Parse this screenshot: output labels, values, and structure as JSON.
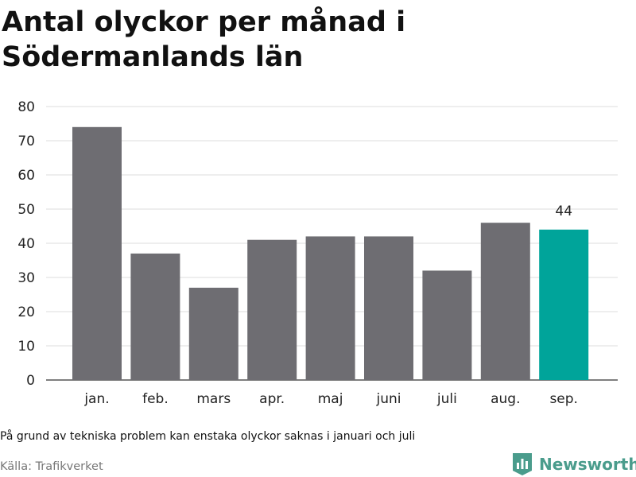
{
  "header": {
    "title": "Antal olyckor per månad i Södermanlands län"
  },
  "chart_data": {
    "type": "bar",
    "categories": [
      "jan.",
      "feb.",
      "mars",
      "apr.",
      "maj",
      "juni",
      "juli",
      "aug.",
      "sep."
    ],
    "values": [
      74,
      37,
      27,
      41,
      42,
      42,
      32,
      46,
      44
    ],
    "yticks": [
      0,
      10,
      20,
      30,
      40,
      50,
      60,
      70,
      80
    ],
    "ylim": [
      0,
      80
    ],
    "grid": true,
    "highlight_index": 8,
    "data_labels": [
      {
        "index": 8,
        "text": "44"
      }
    ],
    "colors": {
      "bar": "#6e6d72",
      "highlight": "#00a49a",
      "grid": "#dddddd",
      "axis": "#333333"
    }
  },
  "footer": {
    "note": "På grund av tekniska problem kan enstaka olyckor saknas i januari och juli",
    "source": "Källa: Trafikverket",
    "brand": "Newsworthy",
    "brand_color": "#4a9c8c",
    "brand_icon": "bar-chart-logo-icon"
  }
}
